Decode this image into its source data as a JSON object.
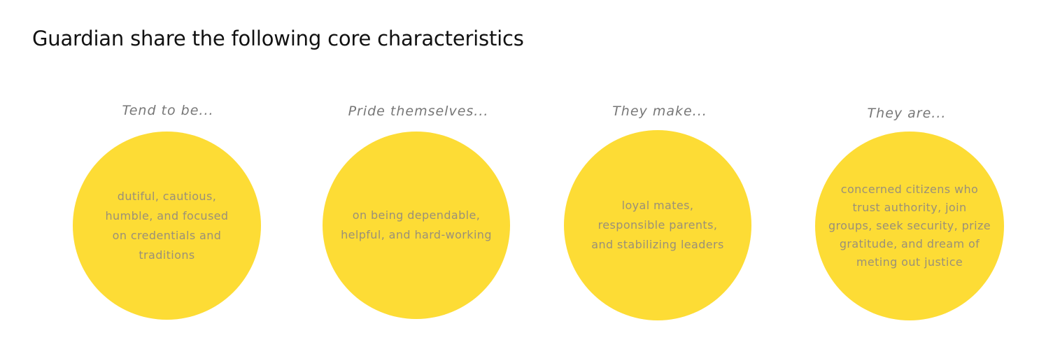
{
  "title": "Guardian share the following core characteristics",
  "colors": {
    "circle_fill": "#fddc35",
    "heading_text": "#777777",
    "body_text": "#9a9078"
  },
  "traits": [
    {
      "heading": "Tend to be...",
      "lines": [
        "dutiful, cautious,",
        "humble, and focused",
        "on credentials and",
        "traditions"
      ]
    },
    {
      "heading": "Pride themselves...",
      "lines": [
        "on being dependable,",
        "helpful, and hard-working"
      ]
    },
    {
      "heading": "They make...",
      "lines": [
        "loyal mates,",
        "responsible parents,",
        "and stabilizing leaders"
      ]
    },
    {
      "heading": "They are...",
      "lines": [
        "concerned citizens who",
        "trust authority, join",
        "groups, seek security, prize",
        "gratitude, and dream of",
        "meting out justice"
      ]
    }
  ]
}
